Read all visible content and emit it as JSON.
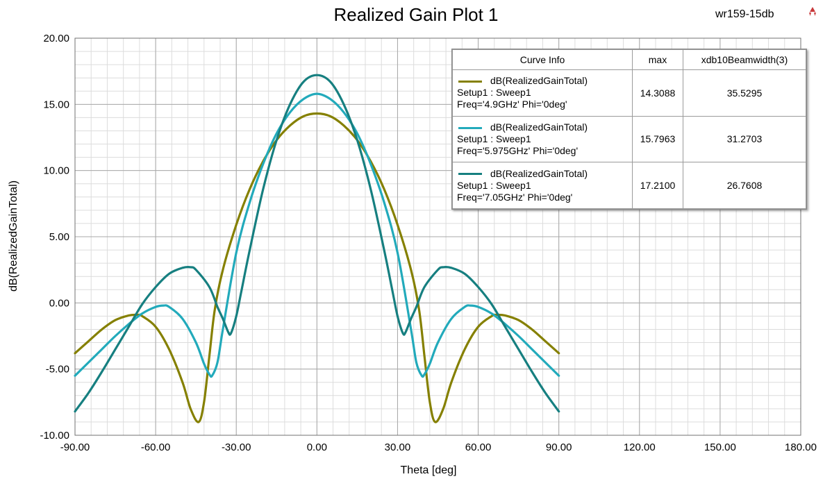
{
  "header": {
    "title": "Realized Gain Plot 1",
    "design_name": "wr159-15db"
  },
  "chart_data": {
    "type": "line",
    "title": "Realized Gain Plot 1",
    "xlabel": "Theta [deg]",
    "ylabel": "dB(RealizedGainTotal)",
    "xlim": [
      -90,
      180
    ],
    "ylim": [
      -10,
      20
    ],
    "xticks": [
      -90,
      -60,
      -30,
      0,
      30,
      60,
      90,
      120,
      150,
      180
    ],
    "yticks": [
      -10,
      -5,
      0,
      5,
      10,
      15,
      20
    ],
    "xtick_labels": [
      "-90.00",
      "-60.00",
      "-30.00",
      "0.00",
      "30.00",
      "60.00",
      "90.00",
      "120.00",
      "150.00",
      "180.00"
    ],
    "ytick_labels": [
      "-10.00",
      "-5.00",
      "0.00",
      "5.00",
      "10.00",
      "15.00",
      "20.00"
    ],
    "grid": true,
    "legend_position": "top-right",
    "series": [
      {
        "name": "dB(RealizedGainTotal)",
        "color": "#858000",
        "x": [
          -90,
          -85,
          -80,
          -75,
          -70,
          -67,
          -65,
          -60,
          -55,
          -50,
          -47,
          -44,
          -42,
          -40,
          -38,
          -35,
          -30,
          -25,
          -20,
          -15,
          -10,
          -5,
          0,
          5,
          10,
          15,
          20,
          25,
          30,
          35,
          38,
          40,
          42,
          44,
          47,
          50,
          55,
          60,
          65,
          67,
          70,
          75,
          80,
          85,
          90
        ],
        "y": [
          -3.8,
          -2.9,
          -2.0,
          -1.3,
          -0.95,
          -0.9,
          -1.0,
          -1.8,
          -3.5,
          -6.0,
          -8.0,
          -9.0,
          -7.5,
          -4.0,
          -0.5,
          2.5,
          5.9,
          8.6,
          10.7,
          12.3,
          13.4,
          14.1,
          14.31,
          14.1,
          13.4,
          12.3,
          10.7,
          8.6,
          5.9,
          2.5,
          -0.5,
          -4.0,
          -7.5,
          -9.0,
          -8.0,
          -6.0,
          -3.5,
          -1.8,
          -1.0,
          -0.9,
          -0.95,
          -1.3,
          -2.0,
          -2.9,
          -3.8
        ]
      },
      {
        "name": "dB(RealizedGainTotal)",
        "color": "#22aabb",
        "x": [
          -90,
          -85,
          -80,
          -75,
          -70,
          -65,
          -60,
          -57,
          -55,
          -50,
          -45,
          -42,
          -40,
          -39,
          -37,
          -35,
          -30,
          -25,
          -20,
          -15,
          -10,
          -5,
          0,
          5,
          10,
          15,
          20,
          25,
          30,
          35,
          37,
          39,
          40,
          42,
          45,
          50,
          55,
          57,
          60,
          65,
          70,
          75,
          80,
          85,
          90
        ],
        "y": [
          -5.5,
          -4.5,
          -3.5,
          -2.5,
          -1.6,
          -0.8,
          -0.3,
          -0.2,
          -0.3,
          -1.2,
          -3.0,
          -4.6,
          -5.4,
          -5.5,
          -4.5,
          -2.0,
          3.8,
          7.6,
          10.5,
          12.8,
          14.4,
          15.4,
          15.8,
          15.4,
          14.4,
          12.8,
          10.5,
          7.6,
          3.8,
          -2.0,
          -4.5,
          -5.5,
          -5.4,
          -4.6,
          -3.0,
          -1.2,
          -0.3,
          -0.2,
          -0.3,
          -0.8,
          -1.6,
          -2.5,
          -3.5,
          -4.5,
          -5.5
        ]
      },
      {
        "name": "dB(RealizedGainTotal)",
        "color": "#167f80",
        "x": [
          -90,
          -85,
          -80,
          -75,
          -70,
          -65,
          -60,
          -55,
          -50,
          -47,
          -45,
          -40,
          -37,
          -35,
          -33,
          -32,
          -30,
          -28,
          -25,
          -20,
          -15,
          -10,
          -5,
          0,
          5,
          10,
          15,
          20,
          25,
          28,
          30,
          32,
          33,
          35,
          37,
          40,
          45,
          47,
          50,
          55,
          60,
          65,
          70,
          75,
          80,
          85,
          90
        ],
        "y": [
          -8.2,
          -6.8,
          -5.2,
          -3.5,
          -1.8,
          -0.1,
          1.2,
          2.2,
          2.65,
          2.7,
          2.5,
          1.2,
          -0.3,
          -1.2,
          -2.2,
          -2.3,
          -1.0,
          1.0,
          4.0,
          8.6,
          12.3,
          15.0,
          16.7,
          17.21,
          16.7,
          15.0,
          12.3,
          8.6,
          4.0,
          1.0,
          -1.0,
          -2.3,
          -2.2,
          -1.2,
          -0.3,
          1.2,
          2.5,
          2.7,
          2.65,
          2.2,
          1.2,
          -0.1,
          -1.8,
          -3.5,
          -5.2,
          -6.8,
          -8.2
        ]
      }
    ]
  },
  "legend": {
    "headers": [
      "Curve Info",
      "max",
      "xdb10Beamwidth(3)"
    ],
    "rows": [
      {
        "line1": "dB(RealizedGainTotal)",
        "line2": "Setup1 : Sweep1",
        "line3": "Freq='4.9GHz' Phi='0deg'",
        "max": "14.3088",
        "beamwidth": "35.5295",
        "color": "#858000"
      },
      {
        "line1": "dB(RealizedGainTotal)",
        "line2": "Setup1 : Sweep1",
        "line3": "Freq='5.975GHz' Phi='0deg'",
        "max": "15.7963",
        "beamwidth": "31.2703",
        "color": "#22aabb"
      },
      {
        "line1": "dB(RealizedGainTotal)",
        "line2": "Setup1 : Sweep1",
        "line3": "Freq='7.05GHz' Phi='0deg'",
        "max": "17.2100",
        "beamwidth": "26.7608",
        "color": "#167f80"
      }
    ]
  }
}
